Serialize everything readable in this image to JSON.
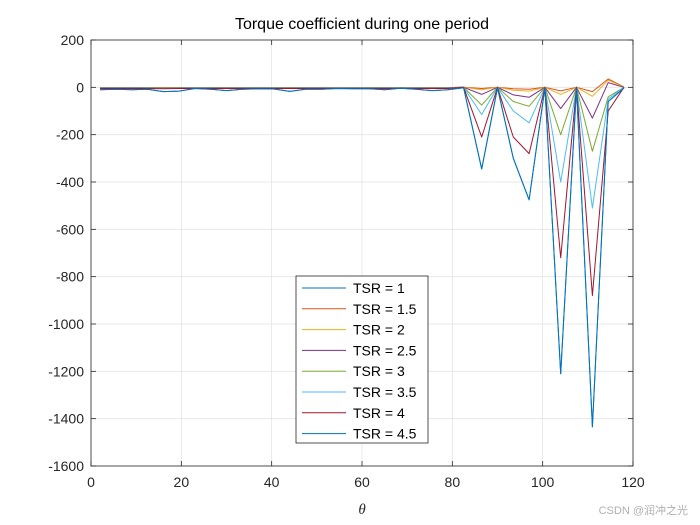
{
  "chart_data": {
    "type": "line",
    "title": "Torque coefficient during one period",
    "xlabel": "θ",
    "ylabel": "",
    "xlim": [
      0,
      120
    ],
    "ylim": [
      -1600,
      200
    ],
    "xticks": [
      0,
      20,
      40,
      60,
      80,
      100,
      120
    ],
    "yticks": [
      200,
      0,
      -200,
      -400,
      -600,
      -800,
      -1000,
      -1200,
      -1400,
      -1600
    ],
    "grid": true,
    "legend_position": "lower-center",
    "x": [
      2,
      5.5,
      9,
      12.5,
      16,
      19.5,
      23,
      26.5,
      30,
      33.5,
      37,
      40.5,
      44,
      47.5,
      51,
      54.5,
      58,
      61.5,
      65,
      68.5,
      72,
      75.5,
      79,
      82.5,
      86.5,
      90,
      93.5,
      97,
      100.5,
      104,
      107.5,
      111,
      114.5,
      118
    ],
    "series": [
      {
        "name": "TSR = 1",
        "color": "#0072BD",
        "values": [
          -10,
          -8,
          -10,
          -8,
          -18,
          -16,
          -5,
          -8,
          -14,
          -8,
          -6,
          -7,
          -17,
          -8,
          -8,
          -5,
          -6,
          -6,
          -10,
          -4,
          -8,
          -14,
          -10,
          -2,
          -345,
          -2,
          -300,
          -475,
          -2,
          -1210,
          -2,
          -1435,
          -60,
          -3
        ]
      },
      {
        "name": "TSR = 1.5",
        "color": "#D95319",
        "values": [
          -1,
          -1,
          -1,
          -1,
          -2,
          -1,
          -1,
          -1,
          -1,
          -1,
          -1,
          -1,
          -1,
          -1,
          -1,
          -1,
          -1,
          -1,
          -1,
          -1,
          -1,
          -1,
          -1,
          0,
          -5,
          0,
          -6,
          -8,
          0,
          -15,
          0,
          -18,
          35,
          2
        ]
      },
      {
        "name": "TSR = 2",
        "color": "#EDB120",
        "values": [
          -1,
          -1,
          -1,
          -1,
          -2,
          -1,
          -1,
          -1,
          -1,
          -1,
          -1,
          -1,
          -1,
          -1,
          -1,
          -1,
          -1,
          -1,
          -1,
          -1,
          -1,
          -1,
          -1,
          0,
          -10,
          0,
          -12,
          -16,
          0,
          -30,
          0,
          -38,
          30,
          1
        ]
      },
      {
        "name": "TSR = 2.5",
        "color": "#7E2F8E",
        "values": [
          -2,
          -2,
          -2,
          -2,
          -3,
          -2,
          -2,
          -2,
          -2,
          -2,
          -2,
          -2,
          -2,
          -2,
          -2,
          -2,
          -2,
          -2,
          -2,
          -2,
          -2,
          -2,
          -2,
          0,
          -30,
          0,
          -32,
          -42,
          0,
          -90,
          0,
          -130,
          20,
          0
        ]
      },
      {
        "name": "TSR = 3",
        "color": "#77AC30",
        "values": [
          -3,
          -3,
          -3,
          -3,
          -4,
          -3,
          -3,
          -3,
          -3,
          -3,
          -3,
          -3,
          -3,
          -3,
          -3,
          -3,
          -3,
          -3,
          -3,
          -3,
          -3,
          -3,
          -3,
          0,
          -75,
          0,
          -60,
          -80,
          0,
          -200,
          0,
          -270,
          -40,
          0
        ]
      },
      {
        "name": "TSR = 3.5",
        "color": "#4DBEEE",
        "values": [
          -4,
          -4,
          -4,
          -4,
          -5,
          -4,
          -4,
          -4,
          -4,
          -4,
          -4,
          -4,
          -4,
          -4,
          -4,
          -4,
          -4,
          -4,
          -4,
          -4,
          -4,
          -4,
          -4,
          0,
          -115,
          0,
          -100,
          -150,
          0,
          -400,
          0,
          -510,
          -50,
          0
        ]
      },
      {
        "name": "TSR = 4",
        "color": "#A2142F",
        "values": [
          -5,
          -5,
          -5,
          -5,
          -6,
          -5,
          -5,
          -5,
          -5,
          -5,
          -5,
          -5,
          -5,
          -5,
          -5,
          -5,
          -5,
          -5,
          -5,
          -5,
          -5,
          -5,
          -5,
          0,
          -210,
          0,
          -210,
          -280,
          0,
          -720,
          0,
          -880,
          -100,
          0
        ]
      },
      {
        "name": "TSR = 4.5",
        "color": "#0072BD",
        "values": [
          -10,
          -8,
          -10,
          -8,
          -18,
          -16,
          -5,
          -8,
          -14,
          -8,
          -6,
          -7,
          -17,
          -8,
          -8,
          -5,
          -6,
          -6,
          -10,
          -4,
          -8,
          -14,
          -10,
          -2,
          -345,
          -2,
          -300,
          -475,
          -2,
          -1210,
          -2,
          -1435,
          -60,
          -3
        ]
      }
    ]
  },
  "watermark": "CSDN @润冲之光"
}
